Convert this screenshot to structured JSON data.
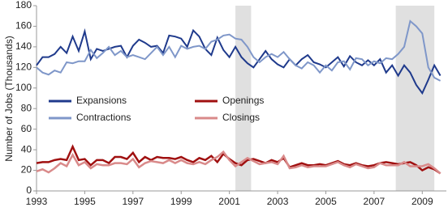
{
  "chart_data": {
    "type": "line",
    "y_label": "Number of Jobs (Thousands)",
    "x": [
      1993,
      1993.25,
      1993.5,
      1993.75,
      1994,
      1994.25,
      1994.5,
      1994.75,
      1995,
      1995.25,
      1995.5,
      1995.75,
      1996,
      1996.25,
      1996.5,
      1996.75,
      1997,
      1997.25,
      1997.5,
      1997.75,
      1998,
      1998.25,
      1998.5,
      1998.75,
      1999,
      1999.25,
      1999.5,
      1999.75,
      2000,
      2000.25,
      2000.5,
      2000.75,
      2001,
      2001.25,
      2001.5,
      2001.75,
      2002,
      2002.25,
      2002.5,
      2002.75,
      2003,
      2003.25,
      2003.5,
      2003.75,
      2004,
      2004.25,
      2004.5,
      2004.75,
      2005,
      2005.25,
      2005.5,
      2005.75,
      2006,
      2006.25,
      2006.5,
      2006.75,
      2007,
      2007.25,
      2007.5,
      2007.75,
      2008,
      2008.25,
      2008.5,
      2008.75,
      2009,
      2009.25,
      2009.5,
      2009.75
    ],
    "series": [
      {
        "name": "Expansions",
        "color": "#1f3a8c",
        "values": [
          122,
          130,
          130,
          133,
          140,
          134,
          150,
          136,
          155,
          128,
          138,
          136,
          138,
          140,
          141,
          130,
          141,
          147,
          144,
          140,
          141,
          134,
          151,
          150,
          148,
          140,
          156,
          150,
          138,
          132,
          149,
          137,
          130,
          140,
          130,
          124,
          120,
          128,
          136,
          128,
          123,
          120,
          128,
          122,
          128,
          132,
          125,
          123,
          120,
          125,
          130,
          121,
          131,
          125,
          122,
          127,
          122,
          128,
          115,
          122,
          112,
          122,
          115,
          103,
          95,
          108,
          122,
          112
        ]
      },
      {
        "name": "Contractions",
        "color": "#7f97c9",
        "values": [
          120,
          115,
          113,
          117,
          115,
          125,
          124,
          126,
          126,
          137,
          129,
          134,
          140,
          132,
          136,
          130,
          132,
          130,
          128,
          134,
          140,
          132,
          140,
          130,
          141,
          138,
          140,
          141,
          138,
          145,
          147,
          151,
          152,
          148,
          147,
          140,
          130,
          125,
          130,
          133,
          130,
          135,
          128,
          122,
          119,
          125,
          122,
          115,
          122,
          117,
          125,
          126,
          118,
          129,
          128,
          122,
          126,
          124,
          129,
          128,
          133,
          140,
          165,
          160,
          153,
          120,
          110,
          107
        ]
      },
      {
        "name": "Openings",
        "color": "#a01010",
        "values": [
          27,
          28,
          28,
          30,
          31,
          30,
          43,
          30,
          31,
          25,
          30,
          30,
          27,
          33,
          33,
          31,
          37,
          28,
          33,
          30,
          33,
          32,
          32,
          31,
          33,
          30,
          28,
          32,
          30,
          34,
          28,
          36,
          31,
          27,
          25,
          30,
          31,
          29,
          27,
          30,
          28,
          32,
          23,
          25,
          27,
          25,
          25,
          26,
          25,
          27,
          29,
          26,
          25,
          27,
          25,
          24,
          25,
          27,
          28,
          27,
          26,
          27,
          28,
          25,
          20,
          23,
          21,
          17
        ]
      },
      {
        "name": "Closings",
        "color": "#d98a8a",
        "values": [
          19,
          21,
          18,
          22,
          27,
          24,
          35,
          25,
          28,
          22,
          26,
          25,
          25,
          27,
          27,
          26,
          31,
          23,
          27,
          29,
          28,
          27,
          30,
          27,
          30,
          27,
          26,
          28,
          26,
          30,
          33,
          38,
          30,
          24,
          28,
          32,
          29,
          26,
          27,
          28,
          26,
          34,
          22,
          23,
          25,
          23,
          24,
          24,
          24,
          26,
          28,
          25,
          23,
          26,
          24,
          22,
          23,
          27,
          25,
          25,
          25,
          28,
          24,
          24,
          24,
          26,
          22,
          17
        ]
      }
    ],
    "shaded": [
      [
        2001.25,
        2001.9
      ],
      [
        2007.9,
        2009.5
      ]
    ],
    "xlim": [
      1993,
      2010
    ],
    "xticks": [
      1993,
      1995,
      1997,
      1999,
      2001,
      2003,
      2005,
      2007,
      2009
    ],
    "ylim": [
      0,
      180
    ],
    "yticks": [
      0,
      20,
      40,
      60,
      80,
      100,
      120,
      140,
      160,
      180
    ],
    "legend": "left"
  }
}
